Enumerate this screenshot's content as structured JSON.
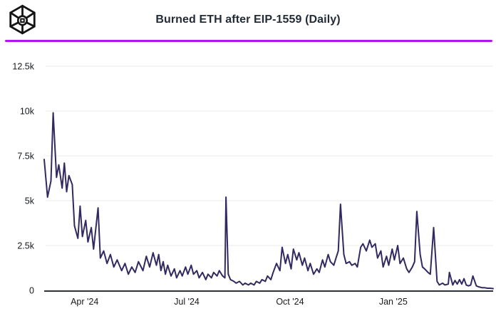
{
  "header": {
    "title": "Burned ETH after EIP-1559 (Daily)",
    "logo_icon": "wireframe-cube-logo"
  },
  "colors": {
    "background": "#ffffff",
    "title_text": "#232b36",
    "accent_divider": "#b315ef",
    "series_line": "#322960",
    "gridline": "#efefef",
    "axis_line": "#2e3138",
    "tick_text": "#17191c",
    "logo": "#141414"
  },
  "chart_data": {
    "type": "line",
    "title": "Burned ETH after EIP-1559 (Daily)",
    "xlabel": "",
    "ylabel": "",
    "unit": "ETH burned per day",
    "grid": true,
    "legend_position": "none",
    "ylim": [
      0,
      12500
    ],
    "x_range": [
      "2024-02-25",
      "2025-03-31"
    ],
    "y_ticks": [
      {
        "label": "0",
        "value": 0
      },
      {
        "label": "2.5k",
        "value": 2500
      },
      {
        "label": "5k",
        "value": 5000
      },
      {
        "label": "7.5k",
        "value": 7500
      },
      {
        "label": "10k",
        "value": 10000
      },
      {
        "label": "12.5k",
        "value": 12500
      }
    ],
    "x_ticks": [
      {
        "label": "Apr '24",
        "date": "2024-04-01"
      },
      {
        "label": "Jul '24",
        "date": "2024-07-01"
      },
      {
        "label": "Oct '24",
        "date": "2024-10-01"
      },
      {
        "label": "Jan '25",
        "date": "2025-01-01"
      }
    ],
    "points": [
      [
        "2024-02-25",
        7300
      ],
      [
        "2024-02-28",
        5200
      ],
      [
        "2024-03-02",
        6100
      ],
      [
        "2024-03-04",
        9900
      ],
      [
        "2024-03-07",
        6300
      ],
      [
        "2024-03-09",
        7000
      ],
      [
        "2024-03-12",
        5700
      ],
      [
        "2024-03-14",
        7100
      ],
      [
        "2024-03-16",
        5500
      ],
      [
        "2024-03-18",
        6400
      ],
      [
        "2024-03-21",
        5900
      ],
      [
        "2024-03-23",
        3600
      ],
      [
        "2024-03-26",
        2900
      ],
      [
        "2024-03-28",
        4700
      ],
      [
        "2024-03-30",
        3000
      ],
      [
        "2024-04-02",
        3900
      ],
      [
        "2024-04-04",
        2700
      ],
      [
        "2024-04-07",
        3500
      ],
      [
        "2024-04-09",
        2300
      ],
      [
        "2024-04-13",
        4600
      ],
      [
        "2024-04-15",
        1800
      ],
      [
        "2024-04-18",
        2200
      ],
      [
        "2024-04-21",
        1500
      ],
      [
        "2024-04-24",
        2000
      ],
      [
        "2024-04-27",
        1300
      ],
      [
        "2024-04-30",
        1700
      ],
      [
        "2024-05-04",
        1100
      ],
      [
        "2024-05-07",
        1500
      ],
      [
        "2024-05-10",
        900
      ],
      [
        "2024-05-13",
        1300
      ],
      [
        "2024-05-16",
        1000
      ],
      [
        "2024-05-19",
        1600
      ],
      [
        "2024-05-23",
        1100
      ],
      [
        "2024-05-26",
        1900
      ],
      [
        "2024-05-29",
        1300
      ],
      [
        "2024-06-01",
        2100
      ],
      [
        "2024-06-04",
        1400
      ],
      [
        "2024-06-06",
        2000
      ],
      [
        "2024-06-08",
        1100
      ],
      [
        "2024-06-10",
        1600
      ],
      [
        "2024-06-12",
        900
      ],
      [
        "2024-06-14",
        1400
      ],
      [
        "2024-06-17",
        800
      ],
      [
        "2024-06-20",
        1200
      ],
      [
        "2024-06-22",
        700
      ],
      [
        "2024-06-25",
        1100
      ],
      [
        "2024-06-27",
        800
      ],
      [
        "2024-06-30",
        1300
      ],
      [
        "2024-07-02",
        900
      ],
      [
        "2024-07-05",
        1400
      ],
      [
        "2024-07-07",
        900
      ],
      [
        "2024-07-10",
        1100
      ],
      [
        "2024-07-12",
        700
      ],
      [
        "2024-07-15",
        1000
      ],
      [
        "2024-07-18",
        600
      ],
      [
        "2024-07-20",
        900
      ],
      [
        "2024-07-23",
        700
      ],
      [
        "2024-07-25",
        1000
      ],
      [
        "2024-07-28",
        800
      ],
      [
        "2024-07-30",
        1100
      ],
      [
        "2024-08-02",
        800
      ],
      [
        "2024-08-04",
        700
      ],
      [
        "2024-08-05",
        5200
      ],
      [
        "2024-08-07",
        900
      ],
      [
        "2024-08-09",
        600
      ],
      [
        "2024-08-12",
        500
      ],
      [
        "2024-08-14",
        400
      ],
      [
        "2024-08-17",
        500
      ],
      [
        "2024-08-20",
        300
      ],
      [
        "2024-08-22",
        400
      ],
      [
        "2024-08-25",
        300
      ],
      [
        "2024-08-27",
        400
      ],
      [
        "2024-08-30",
        300
      ],
      [
        "2024-09-01",
        500
      ],
      [
        "2024-09-04",
        400
      ],
      [
        "2024-09-06",
        600
      ],
      [
        "2024-09-09",
        500
      ],
      [
        "2024-09-11",
        800
      ],
      [
        "2024-09-14",
        600
      ],
      [
        "2024-09-16",
        1000
      ],
      [
        "2024-09-19",
        1500
      ],
      [
        "2024-09-22",
        1100
      ],
      [
        "2024-09-24",
        2400
      ],
      [
        "2024-09-27",
        1500
      ],
      [
        "2024-09-29",
        2000
      ],
      [
        "2024-10-02",
        1200
      ],
      [
        "2024-10-04",
        2300
      ],
      [
        "2024-10-07",
        1700
      ],
      [
        "2024-10-09",
        2100
      ],
      [
        "2024-10-12",
        1400
      ],
      [
        "2024-10-14",
        1800
      ],
      [
        "2024-10-17",
        1100
      ],
      [
        "2024-10-19",
        1500
      ],
      [
        "2024-10-22",
        900
      ],
      [
        "2024-10-25",
        1200
      ],
      [
        "2024-10-27",
        1000
      ],
      [
        "2024-10-30",
        1700
      ],
      [
        "2024-11-01",
        1300
      ],
      [
        "2024-11-04",
        2000
      ],
      [
        "2024-11-06",
        1600
      ],
      [
        "2024-11-09",
        1400
      ],
      [
        "2024-11-11",
        1800
      ],
      [
        "2024-11-13",
        2200
      ],
      [
        "2024-11-15",
        4800
      ],
      [
        "2024-11-18",
        2000
      ],
      [
        "2024-11-20",
        1500
      ],
      [
        "2024-11-23",
        1600
      ],
      [
        "2024-11-25",
        1400
      ],
      [
        "2024-11-28",
        1500
      ],
      [
        "2024-11-30",
        1300
      ],
      [
        "2024-12-03",
        2400
      ],
      [
        "2024-12-05",
        2600
      ],
      [
        "2024-12-08",
        2200
      ],
      [
        "2024-12-11",
        2800
      ],
      [
        "2024-12-13",
        2400
      ],
      [
        "2024-12-16",
        2600
      ],
      [
        "2024-12-18",
        1800
      ],
      [
        "2024-12-21",
        2200
      ],
      [
        "2024-12-23",
        1300
      ],
      [
        "2024-12-26",
        1900
      ],
      [
        "2024-12-28",
        1400
      ],
      [
        "2024-12-31",
        2300
      ],
      [
        "2025-01-02",
        1700
      ],
      [
        "2025-01-05",
        2500
      ],
      [
        "2025-01-07",
        1500
      ],
      [
        "2025-01-10",
        1800
      ],
      [
        "2025-01-13",
        1200
      ],
      [
        "2025-01-15",
        1000
      ],
      [
        "2025-01-18",
        1300
      ],
      [
        "2025-01-20",
        1600
      ],
      [
        "2025-01-22",
        4400
      ],
      [
        "2025-01-25",
        2000
      ],
      [
        "2025-01-27",
        1300
      ],
      [
        "2025-01-29",
        1200
      ],
      [
        "2025-02-01",
        1000
      ],
      [
        "2025-02-03",
        900
      ],
      [
        "2025-02-06",
        3500
      ],
      [
        "2025-02-09",
        500
      ],
      [
        "2025-02-11",
        300
      ],
      [
        "2025-02-14",
        400
      ],
      [
        "2025-02-16",
        300
      ],
      [
        "2025-02-19",
        350
      ],
      [
        "2025-02-20",
        1000
      ],
      [
        "2025-02-23",
        300
      ],
      [
        "2025-02-25",
        550
      ],
      [
        "2025-02-27",
        350
      ],
      [
        "2025-03-01",
        600
      ],
      [
        "2025-03-03",
        350
      ],
      [
        "2025-03-05",
        650
      ],
      [
        "2025-03-07",
        300
      ],
      [
        "2025-03-09",
        250
      ],
      [
        "2025-03-11",
        300
      ],
      [
        "2025-03-13",
        800
      ],
      [
        "2025-03-16",
        250
      ],
      [
        "2025-03-18",
        200
      ],
      [
        "2025-03-21",
        150
      ],
      [
        "2025-03-23",
        150
      ],
      [
        "2025-03-26",
        120
      ],
      [
        "2025-03-28",
        120
      ],
      [
        "2025-03-31",
        100
      ]
    ]
  }
}
